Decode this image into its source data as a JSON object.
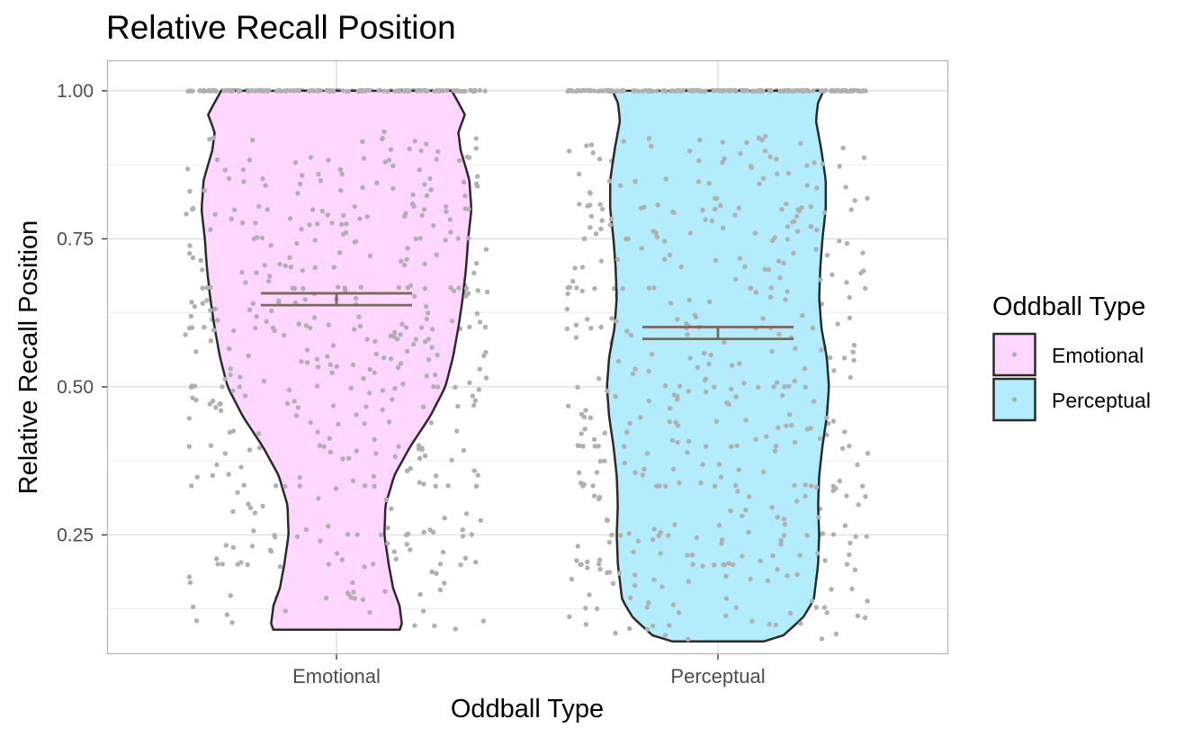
{
  "chart_data": {
    "type": "violin",
    "title": "Relative Recall Position",
    "xlabel": "Oddball Type",
    "ylabel": "Relative Recall Position",
    "categories": [
      "Emotional",
      "Perceptual"
    ],
    "ylim": [
      0.05,
      1.05
    ],
    "yticks": [
      "0.25",
      "0.50",
      "0.75",
      "1.00"
    ],
    "ytick_values": [
      0.25,
      0.5,
      0.75,
      1.0
    ],
    "grid": true,
    "legend": {
      "title": "Oddball Type",
      "position": "right",
      "entries": [
        "Emotional",
        "Perceptual"
      ]
    },
    "colors": {
      "Emotional": "#FFD6FF",
      "Perceptual": "#B3ECFC",
      "outline": "#2a2a2a",
      "points": "#b0b0b0",
      "errorbar": "#7a6a5e"
    },
    "series": [
      {
        "name": "Emotional",
        "mean": 0.648,
        "ci": [
          0.638,
          0.658
        ],
        "range": [
          0.09,
          1.0
        ],
        "profile": [
          [
            0.09,
            0.58
          ],
          [
            0.1,
            0.6
          ],
          [
            0.13,
            0.58
          ],
          [
            0.16,
            0.52
          ],
          [
            0.2,
            0.48
          ],
          [
            0.25,
            0.44
          ],
          [
            0.3,
            0.45
          ],
          [
            0.35,
            0.53
          ],
          [
            0.4,
            0.68
          ],
          [
            0.45,
            0.86
          ],
          [
            0.5,
            1.0
          ],
          [
            0.55,
            1.07
          ],
          [
            0.6,
            1.12
          ],
          [
            0.65,
            1.16
          ],
          [
            0.7,
            1.19
          ],
          [
            0.75,
            1.21
          ],
          [
            0.8,
            1.24
          ],
          [
            0.85,
            1.22
          ],
          [
            0.9,
            1.14
          ],
          [
            0.93,
            1.12
          ],
          [
            0.96,
            1.18
          ],
          [
            1.0,
            1.06
          ]
        ]
      },
      {
        "name": "Perceptual",
        "mean": 0.591,
        "ci": [
          0.581,
          0.601
        ],
        "range": [
          0.07,
          1.0
        ],
        "profile": [
          [
            0.07,
            0.42
          ],
          [
            0.08,
            0.6
          ],
          [
            0.11,
            0.78
          ],
          [
            0.14,
            0.88
          ],
          [
            0.2,
            0.92
          ],
          [
            0.25,
            0.93
          ],
          [
            0.3,
            0.92
          ],
          [
            0.35,
            0.93
          ],
          [
            0.4,
            0.96
          ],
          [
            0.45,
            1.0
          ],
          [
            0.5,
            1.02
          ],
          [
            0.55,
            1.0
          ],
          [
            0.6,
            0.95
          ],
          [
            0.65,
            0.93
          ],
          [
            0.7,
            0.94
          ],
          [
            0.75,
            0.96
          ],
          [
            0.8,
            0.99
          ],
          [
            0.85,
            0.99
          ],
          [
            0.9,
            0.95
          ],
          [
            0.95,
            0.9
          ],
          [
            0.98,
            0.92
          ],
          [
            1.0,
            0.97
          ]
        ]
      }
    ]
  }
}
